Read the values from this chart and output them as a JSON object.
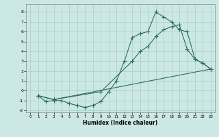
{
  "xlabel": "Humidex (Indice chaleur)",
  "xlim": [
    -0.5,
    23.5
  ],
  "ylim": [
    -2.2,
    8.8
  ],
  "yticks": [
    -2,
    -1,
    0,
    1,
    2,
    3,
    4,
    5,
    6,
    7,
    8
  ],
  "xticks": [
    0,
    1,
    2,
    3,
    4,
    5,
    6,
    7,
    8,
    9,
    10,
    11,
    12,
    13,
    14,
    15,
    16,
    17,
    18,
    19,
    20,
    21,
    22,
    23
  ],
  "background_color": "#cce8e4",
  "grid_color": "#aaccc8",
  "line_color": "#2d6b65",
  "line1_x": [
    1,
    2,
    3,
    4,
    5,
    6,
    7,
    8,
    9,
    10,
    11,
    12,
    13,
    14,
    15,
    16,
    17,
    18,
    19,
    20,
    21,
    22,
    23
  ],
  "line1_y": [
    -0.5,
    -1.1,
    -1.0,
    -1.0,
    -1.3,
    -1.5,
    -1.7,
    -1.5,
    -1.1,
    -0.1,
    1.0,
    3.0,
    5.4,
    5.8,
    6.0,
    8.0,
    7.5,
    7.0,
    6.2,
    6.0,
    3.2,
    2.8,
    2.2
  ],
  "line2_x": [
    1,
    3,
    9,
    13,
    14,
    15,
    16,
    17,
    18,
    19,
    20,
    21,
    22,
    23
  ],
  "line2_y": [
    -0.5,
    -0.9,
    -0.1,
    3.0,
    4.0,
    4.5,
    5.5,
    6.2,
    6.5,
    6.7,
    4.2,
    3.2,
    2.8,
    2.2
  ],
  "line3_x": [
    1,
    3,
    23
  ],
  "line3_y": [
    -0.5,
    -0.9,
    2.2
  ]
}
